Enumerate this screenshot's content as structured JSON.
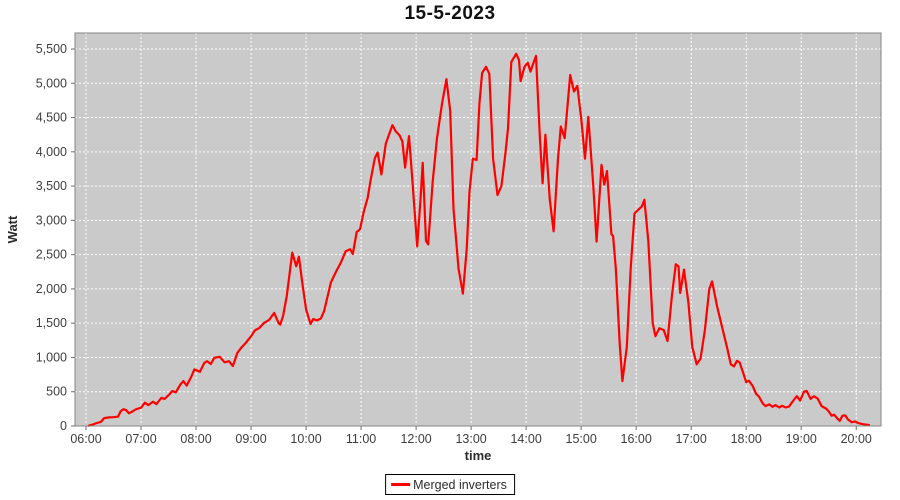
{
  "title": "15-5-2023",
  "colors": {
    "plot_bg": "#cacaca",
    "grid": "#ffffff",
    "series": "#ff0000",
    "axis_text": "#3d3d3d",
    "axis_label_text": "#2b2b2b",
    "plot_border": "#848484",
    "tick": "#6e6e6e"
  },
  "legend": {
    "label": "Merged inverters"
  },
  "chart_data": {
    "type": "line",
    "title": "15-5-2023",
    "xlabel": "time",
    "ylabel": "Watt",
    "grid": true,
    "legend_position": "bottom-center",
    "legend_entries": [
      {
        "label": "Merged inverters",
        "color": "#ff0000"
      }
    ],
    "xlim_hours": [
      5.8,
      20.45
    ],
    "x_tick_hours": [
      6,
      7,
      8,
      9,
      10,
      11,
      12,
      13,
      14,
      15,
      16,
      17,
      18,
      19,
      20
    ],
    "x_tick_labels": [
      "06:00",
      "07:00",
      "08:00",
      "09:00",
      "10:00",
      "11:00",
      "12:00",
      "13:00",
      "14:00",
      "15:00",
      "16:00",
      "17:00",
      "18:00",
      "19:00",
      "20:00"
    ],
    "ylim": [
      0,
      5500
    ],
    "y_tick_step": 500,
    "series": [
      {
        "name": "Merged inverters",
        "color": "#ff0000",
        "points": [
          [
            6.05,
            5
          ],
          [
            6.12,
            20
          ],
          [
            6.2,
            45
          ],
          [
            6.27,
            60
          ],
          [
            6.33,
            115
          ],
          [
            6.42,
            125
          ],
          [
            6.5,
            128
          ],
          [
            6.58,
            135
          ],
          [
            6.63,
            215
          ],
          [
            6.68,
            245
          ],
          [
            6.73,
            230
          ],
          [
            6.78,
            185
          ],
          [
            6.83,
            205
          ],
          [
            6.9,
            240
          ],
          [
            6.97,
            260
          ],
          [
            7.0,
            265
          ],
          [
            7.07,
            340
          ],
          [
            7.13,
            305
          ],
          [
            7.22,
            355
          ],
          [
            7.28,
            320
          ],
          [
            7.37,
            410
          ],
          [
            7.43,
            395
          ],
          [
            7.52,
            465
          ],
          [
            7.57,
            510
          ],
          [
            7.63,
            490
          ],
          [
            7.72,
            610
          ],
          [
            7.77,
            655
          ],
          [
            7.83,
            590
          ],
          [
            7.92,
            730
          ],
          [
            7.97,
            825
          ],
          [
            8.03,
            805
          ],
          [
            8.07,
            790
          ],
          [
            8.15,
            920
          ],
          [
            8.2,
            945
          ],
          [
            8.27,
            905
          ],
          [
            8.33,
            995
          ],
          [
            8.43,
            1010
          ],
          [
            8.52,
            930
          ],
          [
            8.6,
            945
          ],
          [
            8.67,
            875
          ],
          [
            8.75,
            1065
          ],
          [
            8.83,
            1150
          ],
          [
            8.9,
            1210
          ],
          [
            9.0,
            1310
          ],
          [
            9.07,
            1395
          ],
          [
            9.15,
            1430
          ],
          [
            9.23,
            1500
          ],
          [
            9.33,
            1550
          ],
          [
            9.42,
            1650
          ],
          [
            9.5,
            1500
          ],
          [
            9.53,
            1480
          ],
          [
            9.58,
            1600
          ],
          [
            9.65,
            1900
          ],
          [
            9.72,
            2350
          ],
          [
            9.75,
            2530
          ],
          [
            9.82,
            2330
          ],
          [
            9.87,
            2470
          ],
          [
            9.93,
            2100
          ],
          [
            10.0,
            1700
          ],
          [
            10.08,
            1490
          ],
          [
            10.13,
            1560
          ],
          [
            10.2,
            1540
          ],
          [
            10.27,
            1570
          ],
          [
            10.33,
            1680
          ],
          [
            10.45,
            2090
          ],
          [
            10.55,
            2260
          ],
          [
            10.63,
            2380
          ],
          [
            10.72,
            2550
          ],
          [
            10.8,
            2580
          ],
          [
            10.85,
            2510
          ],
          [
            10.92,
            2830
          ],
          [
            10.98,
            2870
          ],
          [
            11.05,
            3130
          ],
          [
            11.12,
            3330
          ],
          [
            11.17,
            3570
          ],
          [
            11.25,
            3905
          ],
          [
            11.3,
            3990
          ],
          [
            11.37,
            3670
          ],
          [
            11.45,
            4120
          ],
          [
            11.57,
            4390
          ],
          [
            11.63,
            4300
          ],
          [
            11.7,
            4240
          ],
          [
            11.75,
            4150
          ],
          [
            11.8,
            3770
          ],
          [
            11.87,
            4230
          ],
          [
            11.93,
            3600
          ],
          [
            12.02,
            2620
          ],
          [
            12.08,
            3300
          ],
          [
            12.12,
            3840
          ],
          [
            12.18,
            2700
          ],
          [
            12.22,
            2650
          ],
          [
            12.3,
            3550
          ],
          [
            12.38,
            4200
          ],
          [
            12.47,
            4700
          ],
          [
            12.55,
            5060
          ],
          [
            12.62,
            4600
          ],
          [
            12.68,
            3170
          ],
          [
            12.77,
            2300
          ],
          [
            12.85,
            1930
          ],
          [
            12.92,
            2580
          ],
          [
            12.97,
            3420
          ],
          [
            13.03,
            3900
          ],
          [
            13.1,
            3880
          ],
          [
            13.15,
            4700
          ],
          [
            13.2,
            5150
          ],
          [
            13.27,
            5240
          ],
          [
            13.33,
            5140
          ],
          [
            13.4,
            3900
          ],
          [
            13.48,
            3370
          ],
          [
            13.55,
            3500
          ],
          [
            13.62,
            3950
          ],
          [
            13.67,
            4340
          ],
          [
            13.73,
            5310
          ],
          [
            13.82,
            5430
          ],
          [
            13.87,
            5340
          ],
          [
            13.9,
            5030
          ],
          [
            13.97,
            5240
          ],
          [
            14.03,
            5300
          ],
          [
            14.08,
            5170
          ],
          [
            14.13,
            5290
          ],
          [
            14.18,
            5400
          ],
          [
            14.25,
            4200
          ],
          [
            14.3,
            3540
          ],
          [
            14.35,
            4250
          ],
          [
            14.43,
            3300
          ],
          [
            14.5,
            2840
          ],
          [
            14.58,
            3900
          ],
          [
            14.63,
            4370
          ],
          [
            14.7,
            4200
          ],
          [
            14.8,
            5120
          ],
          [
            14.87,
            4880
          ],
          [
            14.93,
            4960
          ],
          [
            15.0,
            4490
          ],
          [
            15.07,
            3900
          ],
          [
            15.13,
            4510
          ],
          [
            15.22,
            3500
          ],
          [
            15.28,
            2690
          ],
          [
            15.37,
            3810
          ],
          [
            15.42,
            3520
          ],
          [
            15.47,
            3720
          ],
          [
            15.55,
            2800
          ],
          [
            15.58,
            2770
          ],
          [
            15.63,
            2300
          ],
          [
            15.7,
            1200
          ],
          [
            15.75,
            655
          ],
          [
            15.83,
            1150
          ],
          [
            15.9,
            2300
          ],
          [
            15.97,
            3100
          ],
          [
            16.03,
            3150
          ],
          [
            16.1,
            3200
          ],
          [
            16.15,
            3300
          ],
          [
            16.22,
            2700
          ],
          [
            16.3,
            1500
          ],
          [
            16.35,
            1310
          ],
          [
            16.42,
            1425
          ],
          [
            16.5,
            1400
          ],
          [
            16.57,
            1240
          ],
          [
            16.65,
            1900
          ],
          [
            16.72,
            2360
          ],
          [
            16.77,
            2330
          ],
          [
            16.8,
            1940
          ],
          [
            16.87,
            2280
          ],
          [
            16.95,
            1800
          ],
          [
            17.02,
            1150
          ],
          [
            17.1,
            900
          ],
          [
            17.17,
            980
          ],
          [
            17.25,
            1400
          ],
          [
            17.33,
            2000
          ],
          [
            17.38,
            2110
          ],
          [
            17.47,
            1750
          ],
          [
            17.55,
            1480
          ],
          [
            17.65,
            1150
          ],
          [
            17.72,
            900
          ],
          [
            17.78,
            870
          ],
          [
            17.83,
            950
          ],
          [
            17.88,
            930
          ],
          [
            17.95,
            760
          ],
          [
            18.0,
            640
          ],
          [
            18.05,
            660
          ],
          [
            18.12,
            580
          ],
          [
            18.18,
            470
          ],
          [
            18.23,
            430
          ],
          [
            18.3,
            330
          ],
          [
            18.35,
            290
          ],
          [
            18.42,
            315
          ],
          [
            18.48,
            280
          ],
          [
            18.53,
            305
          ],
          [
            18.6,
            270
          ],
          [
            18.65,
            295
          ],
          [
            18.72,
            270
          ],
          [
            18.78,
            285
          ],
          [
            18.85,
            365
          ],
          [
            18.92,
            435
          ],
          [
            18.98,
            370
          ],
          [
            19.05,
            500
          ],
          [
            19.1,
            510
          ],
          [
            19.17,
            395
          ],
          [
            19.23,
            435
          ],
          [
            19.3,
            400
          ],
          [
            19.37,
            290
          ],
          [
            19.45,
            255
          ],
          [
            19.5,
            215
          ],
          [
            19.55,
            150
          ],
          [
            19.6,
            165
          ],
          [
            19.65,
            115
          ],
          [
            19.7,
            75
          ],
          [
            19.75,
            150
          ],
          [
            19.8,
            155
          ],
          [
            19.85,
            95
          ],
          [
            19.92,
            55
          ],
          [
            19.98,
            65
          ],
          [
            20.03,
            45
          ],
          [
            20.1,
            30
          ],
          [
            20.17,
            20
          ],
          [
            20.23,
            15
          ]
        ]
      }
    ]
  }
}
